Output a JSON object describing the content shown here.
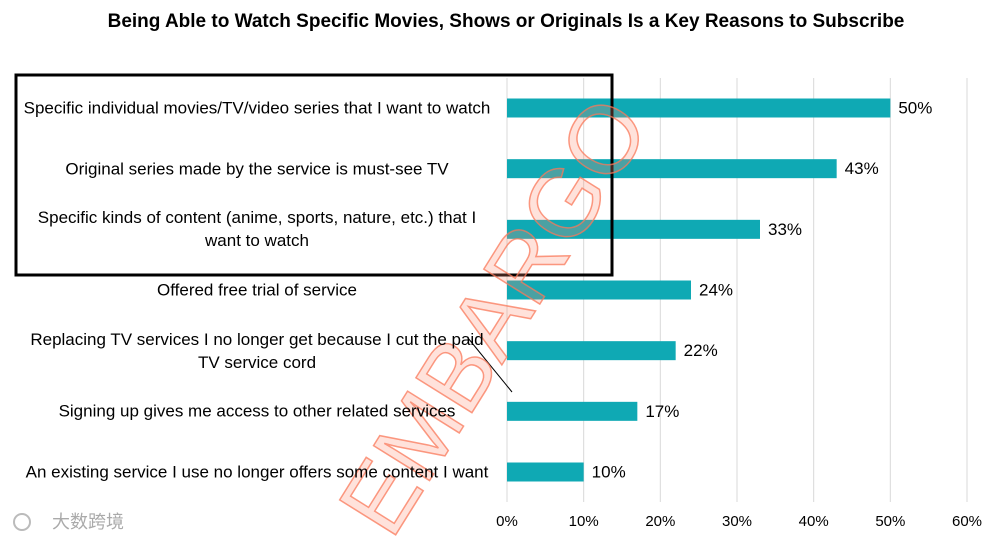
{
  "chart_data": {
    "type": "bar",
    "orientation": "horizontal",
    "title": "Being Able to Watch Specific Movies, Shows or Originals Is a Key Reasons to Subscribe",
    "categories": [
      "Specific individual movies/TV/video series that I want to watch",
      "Original series made by the service is must-see TV",
      "Specific kinds of content (anime, sports, nature, etc.) that I want to watch",
      "Offered free trial of service",
      "Replacing TV services I no longer get because I cut the paid TV service cord",
      "Signing up gives me access to other related services",
      "An existing service I use no longer offers some content I want"
    ],
    "values": [
      50,
      43,
      33,
      24,
      22,
      17,
      10
    ],
    "value_labels": [
      "50%",
      "43%",
      "33%",
      "24%",
      "22%",
      "17%",
      "10%"
    ],
    "color": "#0fa9b4",
    "xlim": [
      0,
      60
    ],
    "xticks": [
      {
        "value": 0,
        "label": "0%"
      },
      {
        "value": 10,
        "label": "10%"
      },
      {
        "value": 20,
        "label": "20%"
      },
      {
        "value": 30,
        "label": "30%"
      },
      {
        "value": 40,
        "label": "40%"
      },
      {
        "value": 50,
        "label": "50%"
      },
      {
        "value": 60,
        "label": "60%"
      }
    ],
    "grid": true,
    "annotations": [
      "EMBARGO",
      "大数跨境"
    ]
  }
}
